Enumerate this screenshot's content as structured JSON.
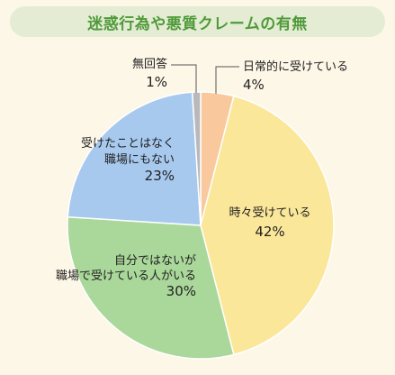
{
  "title": "迷惑行為や悪質クレームの有無",
  "colors": {
    "background": "#fdf7e7",
    "title_bg": "#e4ecd3",
    "title_text": "#4f9a3a"
  },
  "chart_data": {
    "type": "pie",
    "title": "迷惑行為や悪質クレームの有無",
    "start": "top, clockwise",
    "slices": [
      {
        "label_lines": [
          "日常的に受けている"
        ],
        "pct_label": "4%",
        "value": 4,
        "color": "#f9c89c"
      },
      {
        "label_lines": [
          "時々受けている"
        ],
        "pct_label": "42%",
        "value": 42,
        "color": "#fbe79a"
      },
      {
        "label_lines": [
          "自分ではないが",
          "職場で受けている人がいる"
        ],
        "pct_label": "30%",
        "value": 30,
        "color": "#aad79a"
      },
      {
        "label_lines": [
          "受けたことはなく",
          "職場にもない"
        ],
        "pct_label": "23%",
        "value": 23,
        "color": "#a8c9ee"
      },
      {
        "label_lines": [
          "無回答"
        ],
        "pct_label": "1%",
        "value": 1,
        "color": "#b9b9bd"
      }
    ]
  }
}
